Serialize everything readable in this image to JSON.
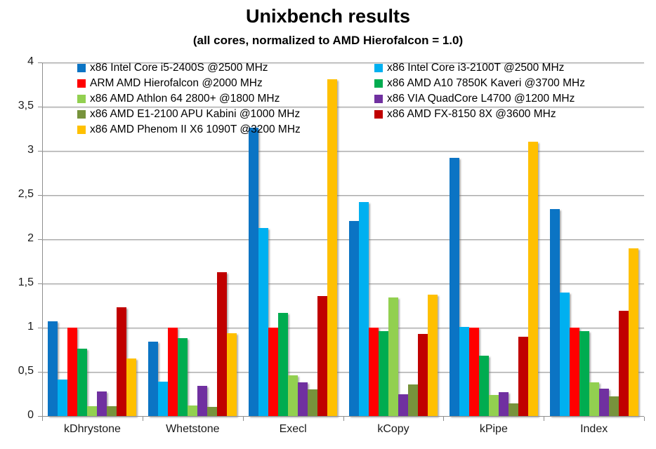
{
  "title": "Unixbench results",
  "subtitle": "(all cores, normalized to AMD Hierofalcon = 1.0)",
  "chart_data": {
    "type": "bar",
    "title": "Unixbench results",
    "subtitle": "(all cores, normalized to AMD Hierofalcon = 1.0)",
    "categories": [
      "kDhrystone",
      "Whetstone",
      "Execl",
      "kCopy",
      "kPipe",
      "Index"
    ],
    "series": [
      {
        "name": "x86 Intel Core i5-2400S @2500 MHz",
        "color": "#0B74C4",
        "values": [
          1.07,
          0.84,
          3.26,
          2.21,
          2.92,
          2.34
        ]
      },
      {
        "name": "x86 Intel Core i3-2100T @2500 MHz",
        "color": "#00B0F0",
        "values": [
          0.41,
          0.39,
          2.13,
          2.42,
          1.01,
          1.4
        ]
      },
      {
        "name": "ARM AMD Hierofalcon @2000 MHz",
        "color": "#FF0000",
        "values": [
          1.0,
          1.0,
          1.0,
          1.0,
          1.0,
          1.0
        ]
      },
      {
        "name": "x86 AMD A10 7850K Kaveri @3700 MHz",
        "color": "#00AC50",
        "values": [
          0.76,
          0.88,
          1.17,
          0.96,
          0.68,
          0.96
        ]
      },
      {
        "name": "x86 AMD Athlon 64 2800+ @1800 MHz",
        "color": "#92D050",
        "values": [
          0.11,
          0.12,
          0.46,
          1.34,
          0.24,
          0.38
        ]
      },
      {
        "name": "x86 VIA QuadCore L4700 @1200 MHz",
        "color": "#7030A0",
        "values": [
          0.28,
          0.34,
          0.38,
          0.25,
          0.27,
          0.31
        ]
      },
      {
        "name": "x86 AMD E1-2100 APU Kabini @1000 MHz",
        "color": "#77933C",
        "values": [
          0.11,
          0.1,
          0.3,
          0.36,
          0.14,
          0.22
        ]
      },
      {
        "name": "x86 AMD FX-8150 8X @3600 MHz",
        "color": "#C00000",
        "values": [
          1.23,
          1.63,
          1.36,
          0.93,
          0.9,
          1.19
        ]
      },
      {
        "name": "x86 AMD Phenom II X6 1090T @3200 MHz",
        "color": "#FFC000",
        "values": [
          0.65,
          0.94,
          3.81,
          1.37,
          3.1,
          1.9
        ]
      }
    ],
    "ylim": [
      0,
      4
    ],
    "ytick_step": 0.5,
    "ytick_labels": [
      "0",
      "0,5",
      "1",
      "1,5",
      "2",
      "2,5",
      "3",
      "3,5",
      "4"
    ],
    "grid": true,
    "legend_position": "top-inside-two-columns"
  }
}
